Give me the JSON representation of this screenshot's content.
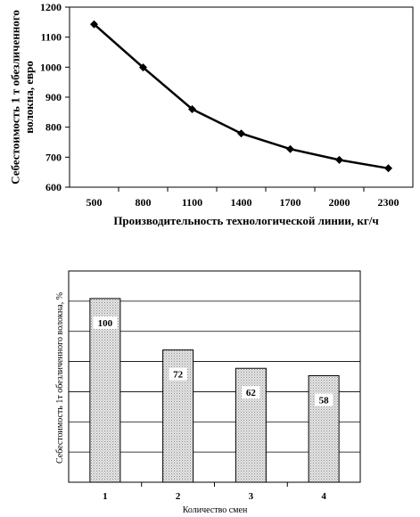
{
  "chart_data": [
    {
      "type": "line",
      "xlabel": "Производительность технологической линии, кг/ч",
      "ylabel": "Себестоимость 1 т обезличенного волокна, евро",
      "ylim": [
        600,
        1200
      ],
      "yticks": [
        "600",
        "700",
        "800",
        "900",
        "1000",
        "1100",
        "1200"
      ],
      "categories": [
        "500",
        "800",
        "1100",
        "1400",
        "1700",
        "2000",
        "2300"
      ],
      "values": [
        1143,
        999,
        860,
        779,
        727,
        691,
        663
      ],
      "grid": false,
      "marker": "diamond"
    },
    {
      "type": "bar",
      "xlabel": "Количество смен",
      "ylabel": "Себестоимость 1т обезличенного волокна, %",
      "ylim": [
        0,
        115
      ],
      "categories": [
        "1",
        "2",
        "3",
        "4"
      ],
      "values": [
        100,
        72,
        62,
        58
      ],
      "data_labels": [
        "100",
        "72",
        "62",
        "58"
      ],
      "grid": true
    }
  ]
}
